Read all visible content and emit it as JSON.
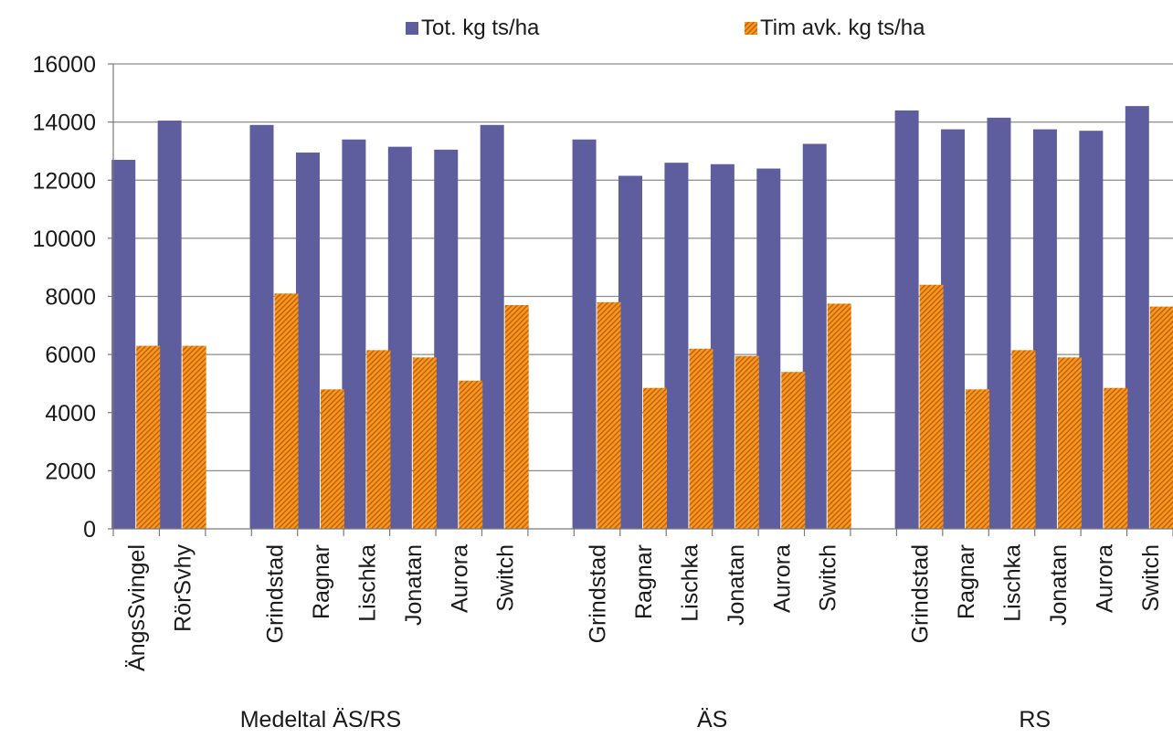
{
  "chart_data": {
    "type": "bar",
    "title": "",
    "xlabel": "",
    "ylabel": "",
    "ylim": [
      0,
      16000
    ],
    "yticks": [
      0,
      2000,
      4000,
      6000,
      8000,
      10000,
      12000,
      14000,
      16000
    ],
    "grid": "horizontal",
    "legend_position": "top",
    "colors": {
      "tot": "#5e5e9e",
      "tim": "#f39a1e",
      "tim_stripe": "#c85a08",
      "grid": "#8c8c8c",
      "axis": "#7a7a7a"
    },
    "categories": [
      "ÄngsSvingel",
      "RörSvhy",
      "",
      "Grindstad",
      "Ragnar",
      "Lischka",
      "Jonatan",
      "Aurora",
      "Switch",
      "",
      "Grindstad",
      "Ragnar",
      "Lischka",
      "Jonatan",
      "Aurora",
      "Switch",
      "",
      "Grindstad",
      "Ragnar",
      "Lischka",
      "Jonatan",
      "Aurora",
      "Switch"
    ],
    "groups": [
      {
        "label": "Medeltal ÄS/RS",
        "from": 0,
        "to": 8
      },
      {
        "label": "ÄS",
        "from": 10,
        "to": 15
      },
      {
        "label": "RS",
        "from": 17,
        "to": 22
      }
    ],
    "series": [
      {
        "name": "Tot. kg ts/ha",
        "values": [
          12700,
          14050,
          null,
          13900,
          12950,
          13400,
          13150,
          13050,
          13900,
          null,
          13400,
          12150,
          12600,
          12550,
          12400,
          13250,
          null,
          14400,
          13750,
          14150,
          13750,
          13700,
          14550
        ]
      },
      {
        "name": "Tim avk. kg ts/ha",
        "values": [
          6300,
          6300,
          null,
          8100,
          4800,
          6150,
          5900,
          5100,
          7700,
          null,
          7800,
          4850,
          6200,
          5950,
          5400,
          7750,
          null,
          8400,
          4800,
          6150,
          5900,
          4850,
          7650
        ]
      }
    ]
  }
}
